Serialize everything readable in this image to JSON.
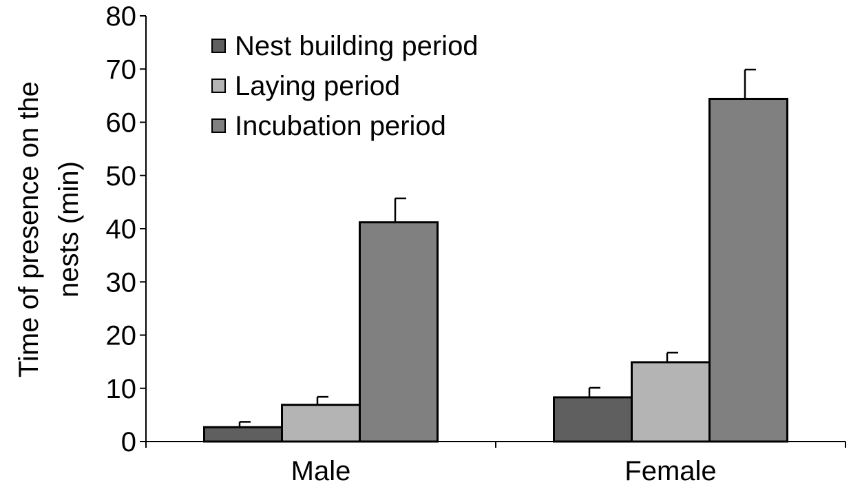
{
  "chart_data": {
    "type": "bar",
    "title": "",
    "xlabel": "",
    "ylabel": "Time of presence on the nests (min)",
    "ylabel_lines": [
      "Time of presence on the",
      "nests (min)"
    ],
    "ylim": [
      0,
      80
    ],
    "yticks": [
      0,
      10,
      20,
      30,
      40,
      50,
      60,
      70,
      80
    ],
    "grid": false,
    "legend_position": "top-left",
    "categories": [
      "Male",
      "Female"
    ],
    "series": [
      {
        "name": "Nest building period",
        "color": "#5f5f5f",
        "values": [
          2.7,
          8.3
        ],
        "errors": [
          1.0,
          1.8
        ]
      },
      {
        "name": "Laying period",
        "color": "#b4b4b4",
        "values": [
          6.9,
          14.9
        ],
        "errors": [
          1.5,
          1.8
        ]
      },
      {
        "name": "Incubation period",
        "color": "#808080",
        "values": [
          41.2,
          64.4
        ],
        "errors": [
          4.5,
          5.5
        ]
      }
    ]
  }
}
